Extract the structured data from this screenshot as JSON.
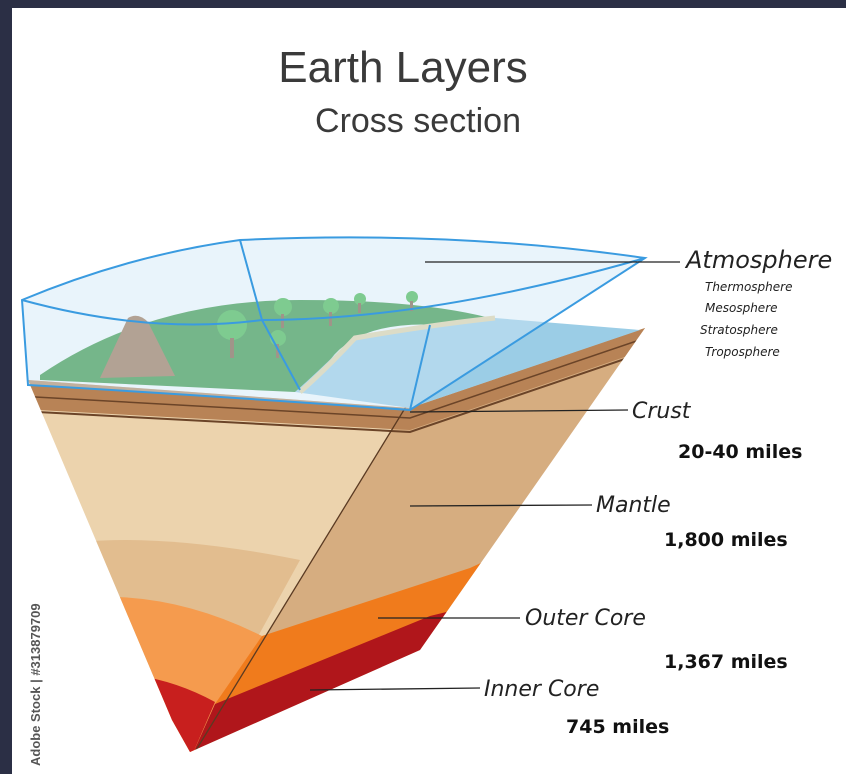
{
  "title": "Earth Layers",
  "subtitle": "Cross section",
  "layers": [
    {
      "name": "Atmosphere",
      "sublayers": [
        "Thermosphere",
        "Mesosphere",
        "Stratosphere",
        "Troposphere"
      ]
    },
    {
      "name": "Crust",
      "thickness": "20-40 miles"
    },
    {
      "name": "Mantle",
      "thickness": "1,800 miles"
    },
    {
      "name": "Outer Core",
      "thickness": "1,367 miles"
    },
    {
      "name": "Inner Core",
      "thickness": "745 miles"
    }
  ],
  "credit": "Adobe Stock | #313879709"
}
